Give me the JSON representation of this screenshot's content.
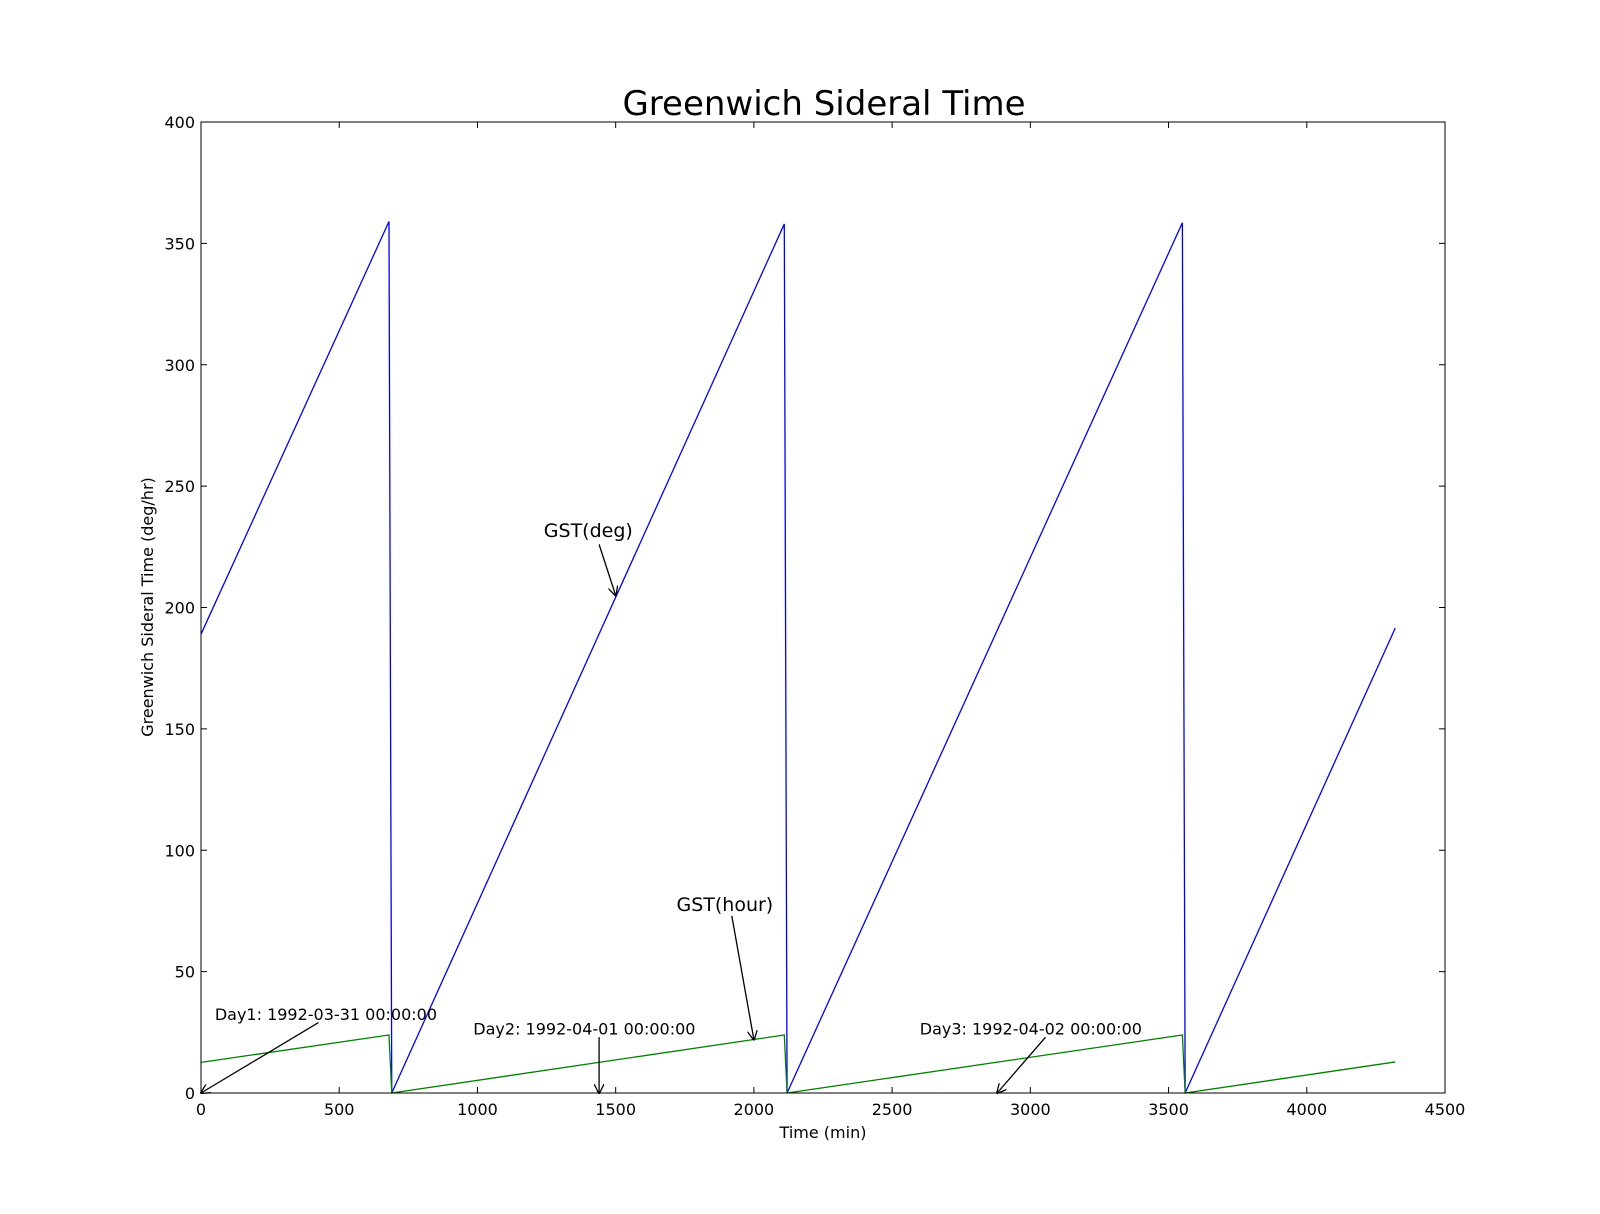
{
  "chart_data": {
    "type": "line",
    "title": "Greenwich Sideral Time",
    "xlabel": "Time (min)",
    "ylabel": "Greenwich Sideral Time (deg/hr)",
    "xlim": [
      0,
      4500
    ],
    "ylim": [
      0,
      400
    ],
    "x_ticks": [
      0,
      500,
      1000,
      1500,
      2000,
      2500,
      3000,
      3500,
      4000,
      4500
    ],
    "y_ticks": [
      0,
      50,
      100,
      150,
      200,
      250,
      300,
      350,
      400
    ],
    "x_tick_labels": [
      "0",
      "500",
      "1000",
      "1500",
      "2000",
      "2500",
      "3000",
      "3500",
      "4000",
      "4500"
    ],
    "y_tick_labels": [
      "0",
      "50",
      "100",
      "150",
      "200",
      "250",
      "300",
      "350",
      "400"
    ],
    "grid": false,
    "series": [
      {
        "color": "#0000ff",
        "x": [
          0,
          680,
          690,
          2110,
          2120,
          3550,
          3560,
          4320
        ],
        "y": [
          189,
          359,
          0,
          358,
          0,
          358.5,
          0,
          191.5
        ]
      },
      {
        "color": "#008000",
        "x": [
          0,
          680,
          690,
          2110,
          2120,
          3550,
          3560,
          4320
        ],
        "y": [
          12.6,
          23.9,
          0,
          23.9,
          0,
          23.9,
          0,
          12.8
        ]
      }
    ],
    "annotations": [
      {
        "text": "GST(deg)",
        "size": "big",
        "text_x": 1240,
        "text_y": 229,
        "arrow_from": [
          1440,
          226
        ],
        "arrow_to": [
          1500,
          205
        ]
      },
      {
        "text": "GST(hour)",
        "size": "big",
        "text_x": 1720,
        "text_y": 75,
        "arrow_from": [
          1920,
          73
        ],
        "arrow_to": [
          2000,
          22
        ]
      },
      {
        "text": "Day1: 1992-03-31 00:00:00",
        "size": "small",
        "text_x": 50,
        "text_y": 30,
        "arrow_from": [
          425,
          29
        ],
        "arrow_to": [
          0,
          0
        ]
      },
      {
        "text": "Day2: 1992-04-01 00:00:00",
        "size": "small",
        "text_x": 985,
        "text_y": 24,
        "arrow_from": [
          1440,
          23
        ],
        "arrow_to": [
          1440,
          0
        ]
      },
      {
        "text": "Day3: 1992-04-02 00:00:00",
        "size": "small",
        "text_x": 2600,
        "text_y": 24,
        "arrow_from": [
          3055,
          23
        ],
        "arrow_to": [
          2880,
          0
        ]
      }
    ]
  }
}
